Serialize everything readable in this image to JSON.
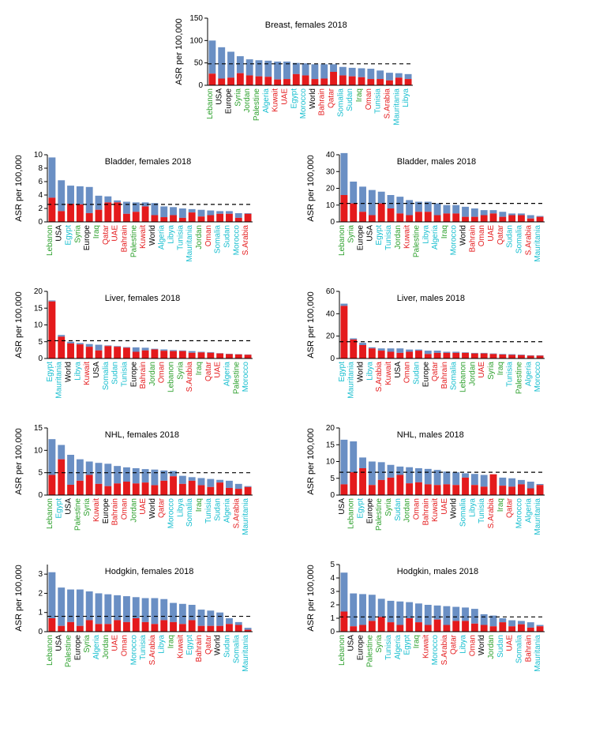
{
  "colors": {
    "top_bar": "#6a8fc4",
    "bottom_bar": "#e41a1c",
    "axis": "#000000",
    "dashed": "#000000",
    "bg": "#ffffff",
    "label_colors": {
      "Lebanon": "#2ca02c",
      "USA": "#000000",
      "Europe": "#000000",
      "Syria": "#2ca02c",
      "Jordan": "#2ca02c",
      "Palestine": "#2ca02c",
      "Algeria": "#17becf",
      "Kuwait": "#e41a1c",
      "UAE": "#e41a1c",
      "Egypt": "#17becf",
      "Morocco": "#17becf",
      "World": "#000000",
      "Bahrain": "#e41a1c",
      "Qatar": "#e41a1c",
      "Somalia": "#17becf",
      "Sudan": "#17becf",
      "Iraq": "#2ca02c",
      "Oman": "#e41a1c",
      "Tunisia": "#17becf",
      "S.Arabia": "#e41a1c",
      "Mauritania": "#17becf",
      "Libya": "#17becf"
    }
  },
  "ylabel": "ASR per 100,000",
  "panels": [
    {
      "id": "breast_f",
      "title": "Breast, females  2018",
      "full_width": true,
      "ylim": [
        0,
        150
      ],
      "yticks": [
        0,
        50,
        100,
        150
      ],
      "dashed": 48,
      "data": [
        {
          "c": "Lebanon",
          "b": 26,
          "t": 100
        },
        {
          "c": "USA",
          "b": 15,
          "t": 85
        },
        {
          "c": "Europe",
          "b": 17,
          "t": 75
        },
        {
          "c": "Syria",
          "b": 27,
          "t": 65
        },
        {
          "c": "Jordan",
          "b": 22,
          "t": 58
        },
        {
          "c": "Palestine",
          "b": 20,
          "t": 56
        },
        {
          "c": "Algeria",
          "b": 19,
          "t": 55
        },
        {
          "c": "Kuwait",
          "b": 13,
          "t": 53
        },
        {
          "c": "UAE",
          "b": 14,
          "t": 53
        },
        {
          "c": "Egypt",
          "b": 25,
          "t": 50
        },
        {
          "c": "Morocco",
          "b": 22,
          "t": 49
        },
        {
          "c": "World",
          "b": 14,
          "t": 47
        },
        {
          "c": "Bahrain",
          "b": 15,
          "t": 47
        },
        {
          "c": "Qatar",
          "b": 30,
          "t": 47
        },
        {
          "c": "Somalia",
          "b": 22,
          "t": 41
        },
        {
          "c": "Sudan",
          "b": 20,
          "t": 39
        },
        {
          "c": "Iraq",
          "b": 18,
          "t": 38
        },
        {
          "c": "Oman",
          "b": 14,
          "t": 37
        },
        {
          "c": "Tunisia",
          "b": 14,
          "t": 33
        },
        {
          "c": "S.Arabia",
          "b": 11,
          "t": 28
        },
        {
          "c": "Mauritania",
          "b": 17,
          "t": 27
        },
        {
          "c": "Libya",
          "b": 14,
          "t": 25
        }
      ]
    },
    {
      "id": "bladder_f",
      "title": "Bladder, females 2018",
      "ylim": [
        0,
        10
      ],
      "yticks": [
        0,
        2,
        4,
        6,
        8,
        10
      ],
      "dashed": 2.6,
      "data": [
        {
          "c": "Lebanon",
          "b": 3.6,
          "t": 9.6
        },
        {
          "c": "USA",
          "b": 1.6,
          "t": 6.2
        },
        {
          "c": "Egypt",
          "b": 2.7,
          "t": 5.4
        },
        {
          "c": "Syria",
          "b": 2.6,
          "t": 5.3
        },
        {
          "c": "Europe",
          "b": 1.3,
          "t": 5.2
        },
        {
          "c": "Iraq",
          "b": 1.8,
          "t": 3.9
        },
        {
          "c": "Qatar",
          "b": 2.9,
          "t": 3.8
        },
        {
          "c": "UAE",
          "b": 2.9,
          "t": 3.2
        },
        {
          "c": "Bahrain",
          "b": 1.2,
          "t": 3.0
        },
        {
          "c": "Palestine",
          "b": 1.5,
          "t": 2.9
        },
        {
          "c": "Kuwait",
          "b": 2.3,
          "t": 2.9
        },
        {
          "c": "World",
          "b": 1.0,
          "t": 2.8
        },
        {
          "c": "Algeria",
          "b": 0.7,
          "t": 2.3
        },
        {
          "c": "Libya",
          "b": 1.0,
          "t": 2.2
        },
        {
          "c": "Tunisia",
          "b": 0.6,
          "t": 2.0
        },
        {
          "c": "Mauritania",
          "b": 1.4,
          "t": 1.9
        },
        {
          "c": "Jordan",
          "b": 0.8,
          "t": 1.8
        },
        {
          "c": "Oman",
          "b": 1.0,
          "t": 1.7
        },
        {
          "c": "Somalia",
          "b": 1.2,
          "t": 1.6
        },
        {
          "c": "Sudan",
          "b": 1.2,
          "t": 1.6
        },
        {
          "c": "Morocco",
          "b": 0.6,
          "t": 1.3
        },
        {
          "c": "S.Arabia",
          "b": 1.2,
          "t": 1.3
        }
      ]
    },
    {
      "id": "bladder_m",
      "title": "Bladder, males 2018",
      "ylim": [
        0,
        40
      ],
      "yticks": [
        0,
        10,
        20,
        30,
        40
      ],
      "dashed": 11,
      "data": [
        {
          "c": "Lebanon",
          "b": 16,
          "t": 41
        },
        {
          "c": "Syria",
          "b": 11,
          "t": 24
        },
        {
          "c": "Europe",
          "b": 6,
          "t": 21
        },
        {
          "c": "USA",
          "b": 4,
          "t": 19
        },
        {
          "c": "Egypt",
          "b": 11,
          "t": 18
        },
        {
          "c": "Tunisia",
          "b": 8,
          "t": 16
        },
        {
          "c": "Jordan",
          "b": 5,
          "t": 15
        },
        {
          "c": "Kuwait",
          "b": 4,
          "t": 13
        },
        {
          "c": "Palestine",
          "b": 6,
          "t": 12
        },
        {
          "c": "Libya",
          "b": 6,
          "t": 12
        },
        {
          "c": "Algeria",
          "b": 4,
          "t": 11
        },
        {
          "c": "Iraq",
          "b": 5,
          "t": 10
        },
        {
          "c": "Morocco",
          "b": 5,
          "t": 10
        },
        {
          "c": "World",
          "b": 3,
          "t": 9
        },
        {
          "c": "Bahrain",
          "b": 3,
          "t": 8
        },
        {
          "c": "Oman",
          "b": 4,
          "t": 7
        },
        {
          "c": "UAE",
          "b": 5,
          "t": 7
        },
        {
          "c": "Qatar",
          "b": 3,
          "t": 6
        },
        {
          "c": "Sudan",
          "b": 4,
          "t": 5
        },
        {
          "c": "Somalia",
          "b": 4,
          "t": 5
        },
        {
          "c": "S.Arabia",
          "b": 2,
          "t": 4
        },
        {
          "c": "Mauritania",
          "b": 3,
          "t": 3.5
        }
      ]
    },
    {
      "id": "liver_f",
      "title": "Liver, females 2018",
      "ylim": [
        0,
        20
      ],
      "yticks": [
        0,
        5,
        10,
        15,
        20
      ],
      "dashed": 5.3,
      "data": [
        {
          "c": "Egypt",
          "b": 17,
          "t": 17.3
        },
        {
          "c": "Mauritania",
          "b": 6.5,
          "t": 7.0
        },
        {
          "c": "World",
          "b": 4.5,
          "t": 5.0
        },
        {
          "c": "Libya",
          "b": 4.2,
          "t": 4.6
        },
        {
          "c": "Kuwait",
          "b": 3.5,
          "t": 4.3
        },
        {
          "c": "USA",
          "b": 2.4,
          "t": 4.1
        },
        {
          "c": "Somalia",
          "b": 3.7,
          "t": 3.9
        },
        {
          "c": "Sudan",
          "b": 3.5,
          "t": 3.7
        },
        {
          "c": "Tunisia",
          "b": 3.2,
          "t": 3.4
        },
        {
          "c": "Europe",
          "b": 2.0,
          "t": 3.3
        },
        {
          "c": "Bahrain",
          "b": 2.4,
          "t": 3.2
        },
        {
          "c": "Jordan",
          "b": 2.7,
          "t": 2.9
        },
        {
          "c": "Oman",
          "b": 2.3,
          "t": 2.7
        },
        {
          "c": "Lebanon",
          "b": 2.2,
          "t": 2.5
        },
        {
          "c": "Syria",
          "b": 2.2,
          "t": 2.4
        },
        {
          "c": "S.Arabia",
          "b": 1.7,
          "t": 2.2
        },
        {
          "c": "Iraq",
          "b": 1.8,
          "t": 2.0
        },
        {
          "c": "Qatar",
          "b": 1.7,
          "t": 1.9
        },
        {
          "c": "UAE",
          "b": 1.5,
          "t": 1.6
        },
        {
          "c": "Algeria",
          "b": 1.3,
          "t": 1.4
        },
        {
          "c": "Palestine",
          "b": 1.2,
          "t": 1.3
        },
        {
          "c": "Morocco",
          "b": 1.1,
          "t": 1.2
        }
      ]
    },
    {
      "id": "liver_m",
      "title": "Liver, males 2018",
      "ylim": [
        0,
        60
      ],
      "yticks": [
        0,
        20,
        40,
        60
      ],
      "dashed": 15,
      "data": [
        {
          "c": "Egypt",
          "b": 47,
          "t": 49
        },
        {
          "c": "Mauritania",
          "b": 17,
          "t": 18
        },
        {
          "c": "World",
          "b": 12,
          "t": 14
        },
        {
          "c": "Libya",
          "b": 9,
          "t": 10
        },
        {
          "c": "S.Arabia",
          "b": 7,
          "t": 9
        },
        {
          "c": "Kuwait",
          "b": 6,
          "t": 9
        },
        {
          "c": "USA",
          "b": 5,
          "t": 9
        },
        {
          "c": "Oman",
          "b": 6,
          "t": 8
        },
        {
          "c": "Sudan",
          "b": 7,
          "t": 8
        },
        {
          "c": "Europe",
          "b": 4,
          "t": 7
        },
        {
          "c": "Qatar",
          "b": 5,
          "t": 7
        },
        {
          "c": "Bahrain",
          "b": 5,
          "t": 6
        },
        {
          "c": "Somalia",
          "b": 5,
          "t": 6
        },
        {
          "c": "Lebanon",
          "b": 5,
          "t": 5.5
        },
        {
          "c": "Jordan",
          "b": 4.5,
          "t": 5
        },
        {
          "c": "UAE",
          "b": 4.5,
          "t": 5
        },
        {
          "c": "Syria",
          "b": 4,
          "t": 4.5
        },
        {
          "c": "Iraq",
          "b": 3.5,
          "t": 4
        },
        {
          "c": "Tunisia",
          "b": 3.2,
          "t": 3.8
        },
        {
          "c": "Palestine",
          "b": 3,
          "t": 3.5
        },
        {
          "c": "Algeria",
          "b": 2.5,
          "t": 2.8
        },
        {
          "c": "Morocco",
          "b": 2.5,
          "t": 2.8
        }
      ]
    },
    {
      "id": "nhl_f",
      "title": "NHL, females 2018",
      "ylim": [
        0,
        15
      ],
      "yticks": [
        0,
        5,
        10,
        15
      ],
      "dashed": 5,
      "data": [
        {
          "c": "Lebanon",
          "b": 4.5,
          "t": 12.5
        },
        {
          "c": "Egypt",
          "b": 8.0,
          "t": 11.2
        },
        {
          "c": "USA",
          "b": 2.3,
          "t": 9.0
        },
        {
          "c": "Palestine",
          "b": 3.2,
          "t": 8.0
        },
        {
          "c": "Syria",
          "b": 4.5,
          "t": 7.5
        },
        {
          "c": "Kuwait",
          "b": 2.5,
          "t": 7.2
        },
        {
          "c": "Europe",
          "b": 2.0,
          "t": 7.0
        },
        {
          "c": "Bahrain",
          "b": 2.6,
          "t": 6.5
        },
        {
          "c": "Oman",
          "b": 3.0,
          "t": 6.2
        },
        {
          "c": "Jordan",
          "b": 2.6,
          "t": 6.0
        },
        {
          "c": "UAE",
          "b": 2.8,
          "t": 5.8
        },
        {
          "c": "World",
          "b": 2.2,
          "t": 5.7
        },
        {
          "c": "Qatar",
          "b": 3.2,
          "t": 5.5
        },
        {
          "c": "Morocco",
          "b": 4.2,
          "t": 5.4
        },
        {
          "c": "Libya",
          "b": 2.5,
          "t": 4.3
        },
        {
          "c": "Somalia",
          "b": 3.2,
          "t": 4.0
        },
        {
          "c": "Iraq",
          "b": 2.2,
          "t": 3.8
        },
        {
          "c": "Tunisia",
          "b": 1.8,
          "t": 3.6
        },
        {
          "c": "Sudan",
          "b": 2.8,
          "t": 3.4
        },
        {
          "c": "Algeria",
          "b": 1.6,
          "t": 3.2
        },
        {
          "c": "S.Arabia",
          "b": 1.4,
          "t": 2.5
        },
        {
          "c": "Mauritania",
          "b": 1.8,
          "t": 2.0
        }
      ]
    },
    {
      "id": "nhl_m",
      "title": "NHL, males 2018",
      "ylim": [
        0,
        20
      ],
      "yticks": [
        0,
        5,
        10,
        15,
        20
      ],
      "dashed": 6.8,
      "data": [
        {
          "c": "USA",
          "b": 3.2,
          "t": 16.5
        },
        {
          "c": "Lebanon",
          "b": 6.8,
          "t": 16.0
        },
        {
          "c": "Egypt",
          "b": 8.0,
          "t": 11.2
        },
        {
          "c": "Europe",
          "b": 3.0,
          "t": 10.0
        },
        {
          "c": "Palestine",
          "b": 4.5,
          "t": 9.8
        },
        {
          "c": "Syria",
          "b": 5.2,
          "t": 9.0
        },
        {
          "c": "Sudan",
          "b": 6.0,
          "t": 8.5
        },
        {
          "c": "Jordan",
          "b": 3.5,
          "t": 8.3
        },
        {
          "c": "Oman",
          "b": 3.8,
          "t": 8.0
        },
        {
          "c": "Bahrain",
          "b": 3.2,
          "t": 7.8
        },
        {
          "c": "Kuwait",
          "b": 3.0,
          "t": 7.5
        },
        {
          "c": "UAE",
          "b": 3.2,
          "t": 7.0
        },
        {
          "c": "World",
          "b": 3.0,
          "t": 6.8
        },
        {
          "c": "Somalia",
          "b": 5.2,
          "t": 6.5
        },
        {
          "c": "Libya",
          "b": 3.0,
          "t": 6.3
        },
        {
          "c": "Tunisia",
          "b": 2.5,
          "t": 6.0
        },
        {
          "c": "S.Arabia",
          "b": 6.2,
          "t": 6.2
        },
        {
          "c": "Iraq",
          "b": 2.8,
          "t": 5.2
        },
        {
          "c": "Qatar",
          "b": 2.5,
          "t": 5.0
        },
        {
          "c": "Morocco",
          "b": 3.2,
          "t": 4.5
        },
        {
          "c": "Algeria",
          "b": 2.0,
          "t": 4.0
        },
        {
          "c": "Mauritania",
          "b": 3.0,
          "t": 3.3
        }
      ]
    },
    {
      "id": "hodgkin_f",
      "title": "Hodgkin, females 2018",
      "ylim": [
        0,
        3.5
      ],
      "yticks": [
        0,
        1,
        2,
        3
      ],
      "dashed": 0.8,
      "data": [
        {
          "c": "Lebanon",
          "b": 0.7,
          "t": 3.1
        },
        {
          "c": "USA",
          "b": 0.3,
          "t": 2.3
        },
        {
          "c": "Palestine",
          "b": 0.5,
          "t": 2.2
        },
        {
          "c": "Europe",
          "b": 0.3,
          "t": 2.2
        },
        {
          "c": "Syria",
          "b": 0.6,
          "t": 2.1
        },
        {
          "c": "Algeria",
          "b": 0.4,
          "t": 2.0
        },
        {
          "c": "Jordan",
          "b": 0.4,
          "t": 1.95
        },
        {
          "c": "UAE",
          "b": 0.6,
          "t": 1.9
        },
        {
          "c": "Oman",
          "b": 0.5,
          "t": 1.85
        },
        {
          "c": "Morocco",
          "b": 0.7,
          "t": 1.8
        },
        {
          "c": "Tunisia",
          "b": 0.5,
          "t": 1.75
        },
        {
          "c": "S.Arabia",
          "b": 0.4,
          "t": 1.75
        },
        {
          "c": "Libya",
          "b": 0.6,
          "t": 1.7
        },
        {
          "c": "Iraq",
          "b": 0.5,
          "t": 1.5
        },
        {
          "c": "Kuwait",
          "b": 0.4,
          "t": 1.45
        },
        {
          "c": "Egypt",
          "b": 0.6,
          "t": 1.4
        },
        {
          "c": "Bahrain",
          "b": 0.3,
          "t": 1.15
        },
        {
          "c": "Qatar",
          "b": 0.3,
          "t": 1.1
        },
        {
          "c": "World",
          "b": 0.3,
          "t": 1.0
        },
        {
          "c": "Sudan",
          "b": 0.4,
          "t": 0.7
        },
        {
          "c": "Somalia",
          "b": 0.35,
          "t": 0.5
        },
        {
          "c": "Mauritania",
          "b": 0.1,
          "t": 0.2
        }
      ]
    },
    {
      "id": "hodgkin_m",
      "title": "Hodgkin, males 2018",
      "ylim": [
        0,
        5
      ],
      "yticks": [
        0,
        1,
        2,
        3,
        4,
        5
      ],
      "dashed": 1.1,
      "data": [
        {
          "c": "Lebanon",
          "b": 1.5,
          "t": 4.4
        },
        {
          "c": "USA",
          "b": 0.4,
          "t": 2.85
        },
        {
          "c": "Europe",
          "b": 0.5,
          "t": 2.8
        },
        {
          "c": "Palestine",
          "b": 0.8,
          "t": 2.75
        },
        {
          "c": "Syria",
          "b": 1.1,
          "t": 2.45
        },
        {
          "c": "Tunisia",
          "b": 0.7,
          "t": 2.3
        },
        {
          "c": "Algeria",
          "b": 0.5,
          "t": 2.25
        },
        {
          "c": "Egypt",
          "b": 1.0,
          "t": 2.2
        },
        {
          "c": "Iraq",
          "b": 0.7,
          "t": 2.1
        },
        {
          "c": "Kuwait",
          "b": 0.5,
          "t": 2.0
        },
        {
          "c": "Morocco",
          "b": 0.9,
          "t": 1.95
        },
        {
          "c": "S.Arabia",
          "b": 0.5,
          "t": 1.9
        },
        {
          "c": "Qatar",
          "b": 0.8,
          "t": 1.85
        },
        {
          "c": "Libya",
          "b": 0.8,
          "t": 1.8
        },
        {
          "c": "Oman",
          "b": 0.6,
          "t": 1.7
        },
        {
          "c": "World",
          "b": 0.5,
          "t": 1.3
        },
        {
          "c": "Jordan",
          "b": 0.4,
          "t": 1.2
        },
        {
          "c": "Sudan",
          "b": 0.7,
          "t": 1.0
        },
        {
          "c": "UAE",
          "b": 0.4,
          "t": 0.85
        },
        {
          "c": "Somalia",
          "b": 0.55,
          "t": 0.8
        },
        {
          "c": "Bahrain",
          "b": 0.3,
          "t": 0.7
        },
        {
          "c": "Mauritania",
          "b": 0.4,
          "t": 0.5
        }
      ]
    }
  ]
}
